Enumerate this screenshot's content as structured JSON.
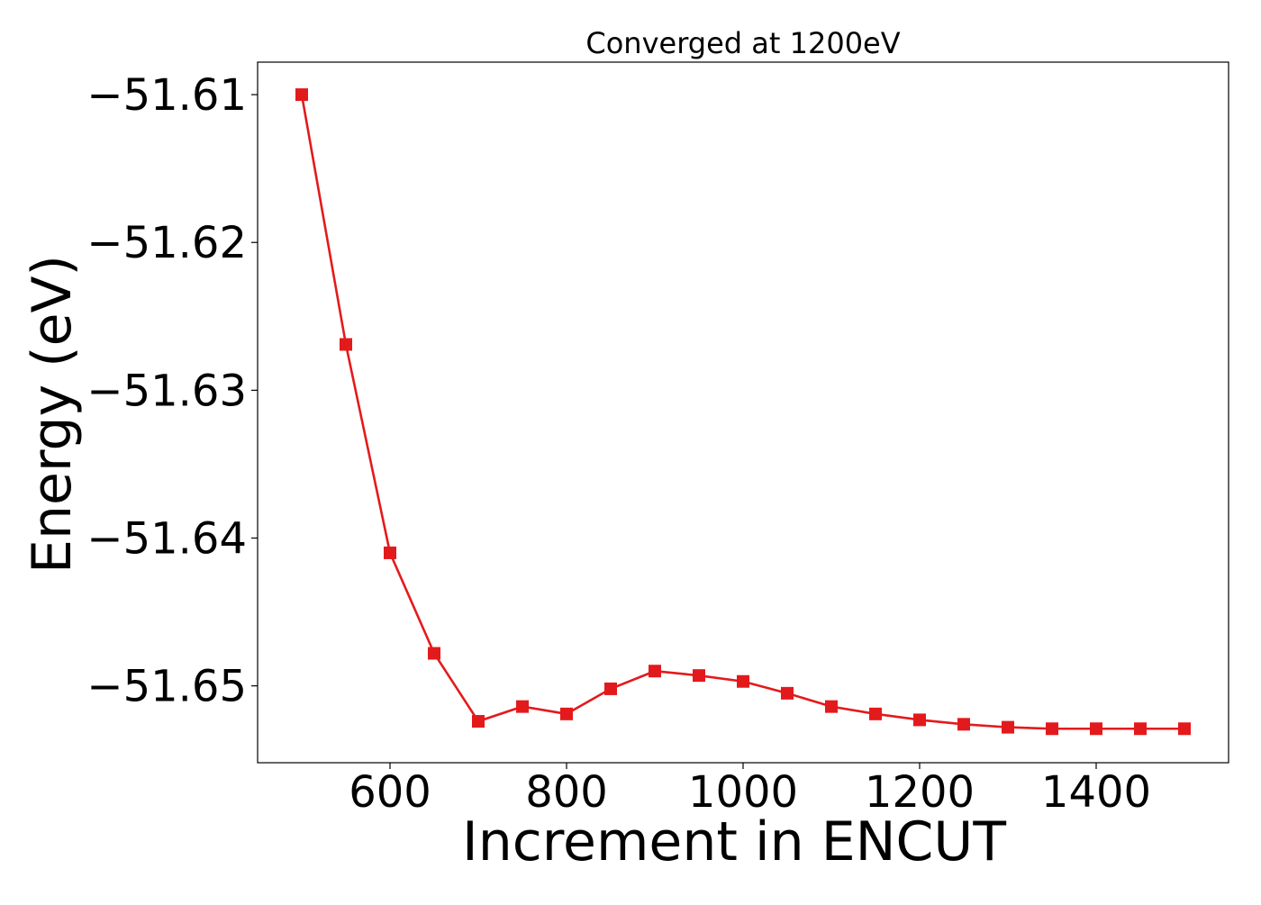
{
  "chart_data": {
    "type": "line",
    "title": "Converged at 1200eV",
    "xlabel": "Increment in ENCUT",
    "ylabel": "Energy (eV)",
    "xlim": [
      450,
      1550
    ],
    "ylim": [
      -51.6552,
      -51.6078
    ],
    "xticks": [
      600,
      800,
      1000,
      1200,
      1400
    ],
    "xtick_labels": [
      "600",
      "800",
      "1000",
      "1200",
      "1400"
    ],
    "yticks": [
      -51.61,
      -51.62,
      -51.63,
      -51.64,
      -51.65
    ],
    "ytick_labels": [
      "−51.61",
      "−51.62",
      "−51.63",
      "−51.64",
      "−51.65"
    ],
    "grid": false,
    "marker": "square",
    "series": [
      {
        "color": "#e31a1c",
        "x": [
          500,
          550,
          600,
          650,
          700,
          750,
          800,
          850,
          900,
          950,
          1000,
          1050,
          1100,
          1150,
          1200,
          1250,
          1300,
          1350,
          1400,
          1450,
          1500
        ],
        "y": [
          -51.61,
          -51.6269,
          -51.641,
          -51.6478,
          -51.6524,
          -51.6514,
          -51.6519,
          -51.6502,
          -51.649,
          -51.6493,
          -51.6497,
          -51.6505,
          -51.6514,
          -51.6519,
          -51.6523,
          -51.6526,
          -51.6528,
          -51.6529,
          -51.6529,
          -51.6529,
          -51.6529
        ]
      }
    ]
  }
}
